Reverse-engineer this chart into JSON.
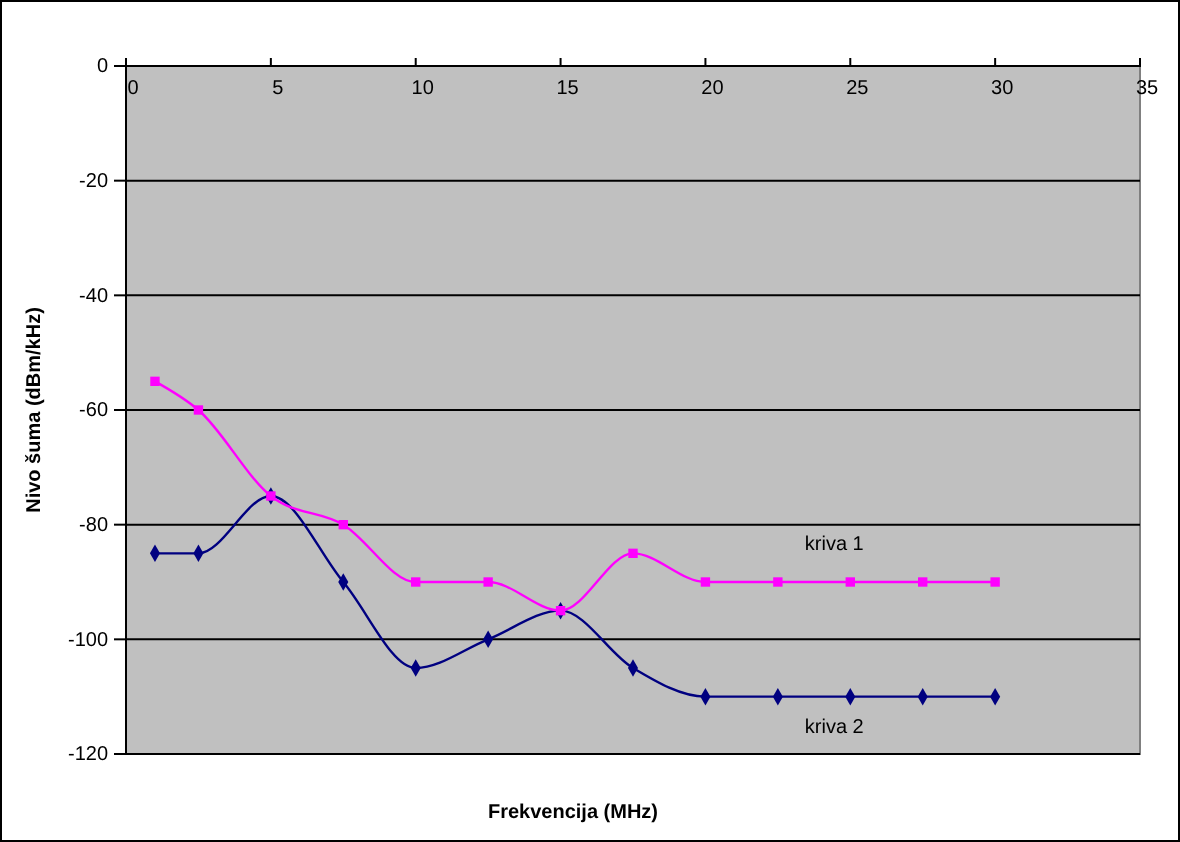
{
  "chart_data": {
    "type": "line",
    "xlabel": "Frekvencija (MHz)",
    "ylabel": "Nivo šuma (dBm/kHz)",
    "x": [
      1,
      2.5,
      5,
      7.5,
      10,
      12.5,
      15,
      17.5,
      20,
      22.5,
      25,
      27.5,
      30
    ],
    "series": [
      {
        "name": "kriva 1",
        "color": "#ff00ff",
        "marker": "square",
        "values": [
          -55,
          -60,
          -75,
          -80,
          -90,
          -90,
          -95,
          -85,
          -90,
          -90,
          -90,
          -90,
          -90
        ]
      },
      {
        "name": "kriva 2",
        "color": "#000080",
        "marker": "diamond",
        "values": [
          -85,
          -85,
          -75,
          -90,
          -105,
          -100,
          -95,
          -105,
          -110,
          -110,
          -110,
          -110,
          -110
        ]
      }
    ],
    "xlim": [
      0,
      35
    ],
    "xticks": [
      0,
      5,
      10,
      15,
      20,
      25,
      30,
      35
    ],
    "ylim": [
      -120,
      0
    ],
    "yticks": [
      -120,
      -100,
      -80,
      -60,
      -40,
      -20,
      0
    ],
    "grid": "y",
    "legend": false,
    "line_style": "solid"
  }
}
